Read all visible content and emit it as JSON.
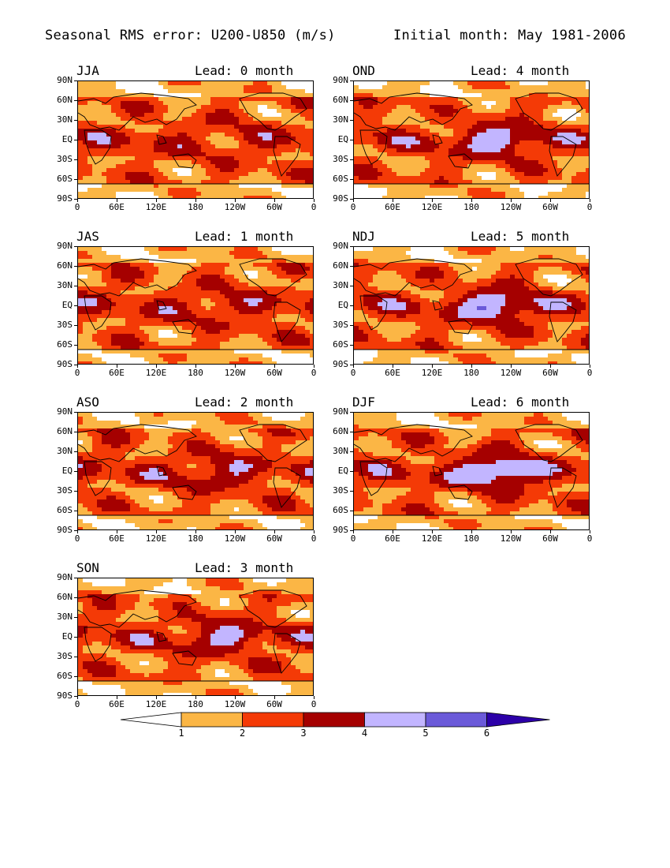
{
  "figure": {
    "title_left": "Seasonal RMS error: U200-U850 (m/s)",
    "title_right": "Initial month: May 1981-2006"
  },
  "map_axes": {
    "lat_labels": [
      "90N",
      "60N",
      "30N",
      "EQ",
      "30S",
      "60S",
      "90S"
    ],
    "lon_labels": [
      "0",
      "60E",
      "120E",
      "180",
      "120W",
      "60W",
      "0"
    ]
  },
  "panels": [
    {
      "season": "JJA",
      "lead": "Lead: 0 month"
    },
    {
      "season": "JAS",
      "lead": "Lead: 1 month"
    },
    {
      "season": "ASO",
      "lead": "Lead: 2 month"
    },
    {
      "season": "SON",
      "lead": "Lead: 3 month"
    },
    {
      "season": "OND",
      "lead": "Lead: 4 month"
    },
    {
      "season": "NDJ",
      "lead": "Lead: 5 month"
    },
    {
      "season": "DJF",
      "lead": "Lead: 6 month"
    }
  ],
  "colorbar": {
    "labels": [
      "1",
      "2",
      "3",
      "4",
      "5",
      "6"
    ],
    "colors": [
      "#ffffff",
      "#fbb645",
      "#f43a06",
      "#a50000",
      "#c2b5ff",
      "#6b5ad9",
      "#2c00a8"
    ]
  }
}
